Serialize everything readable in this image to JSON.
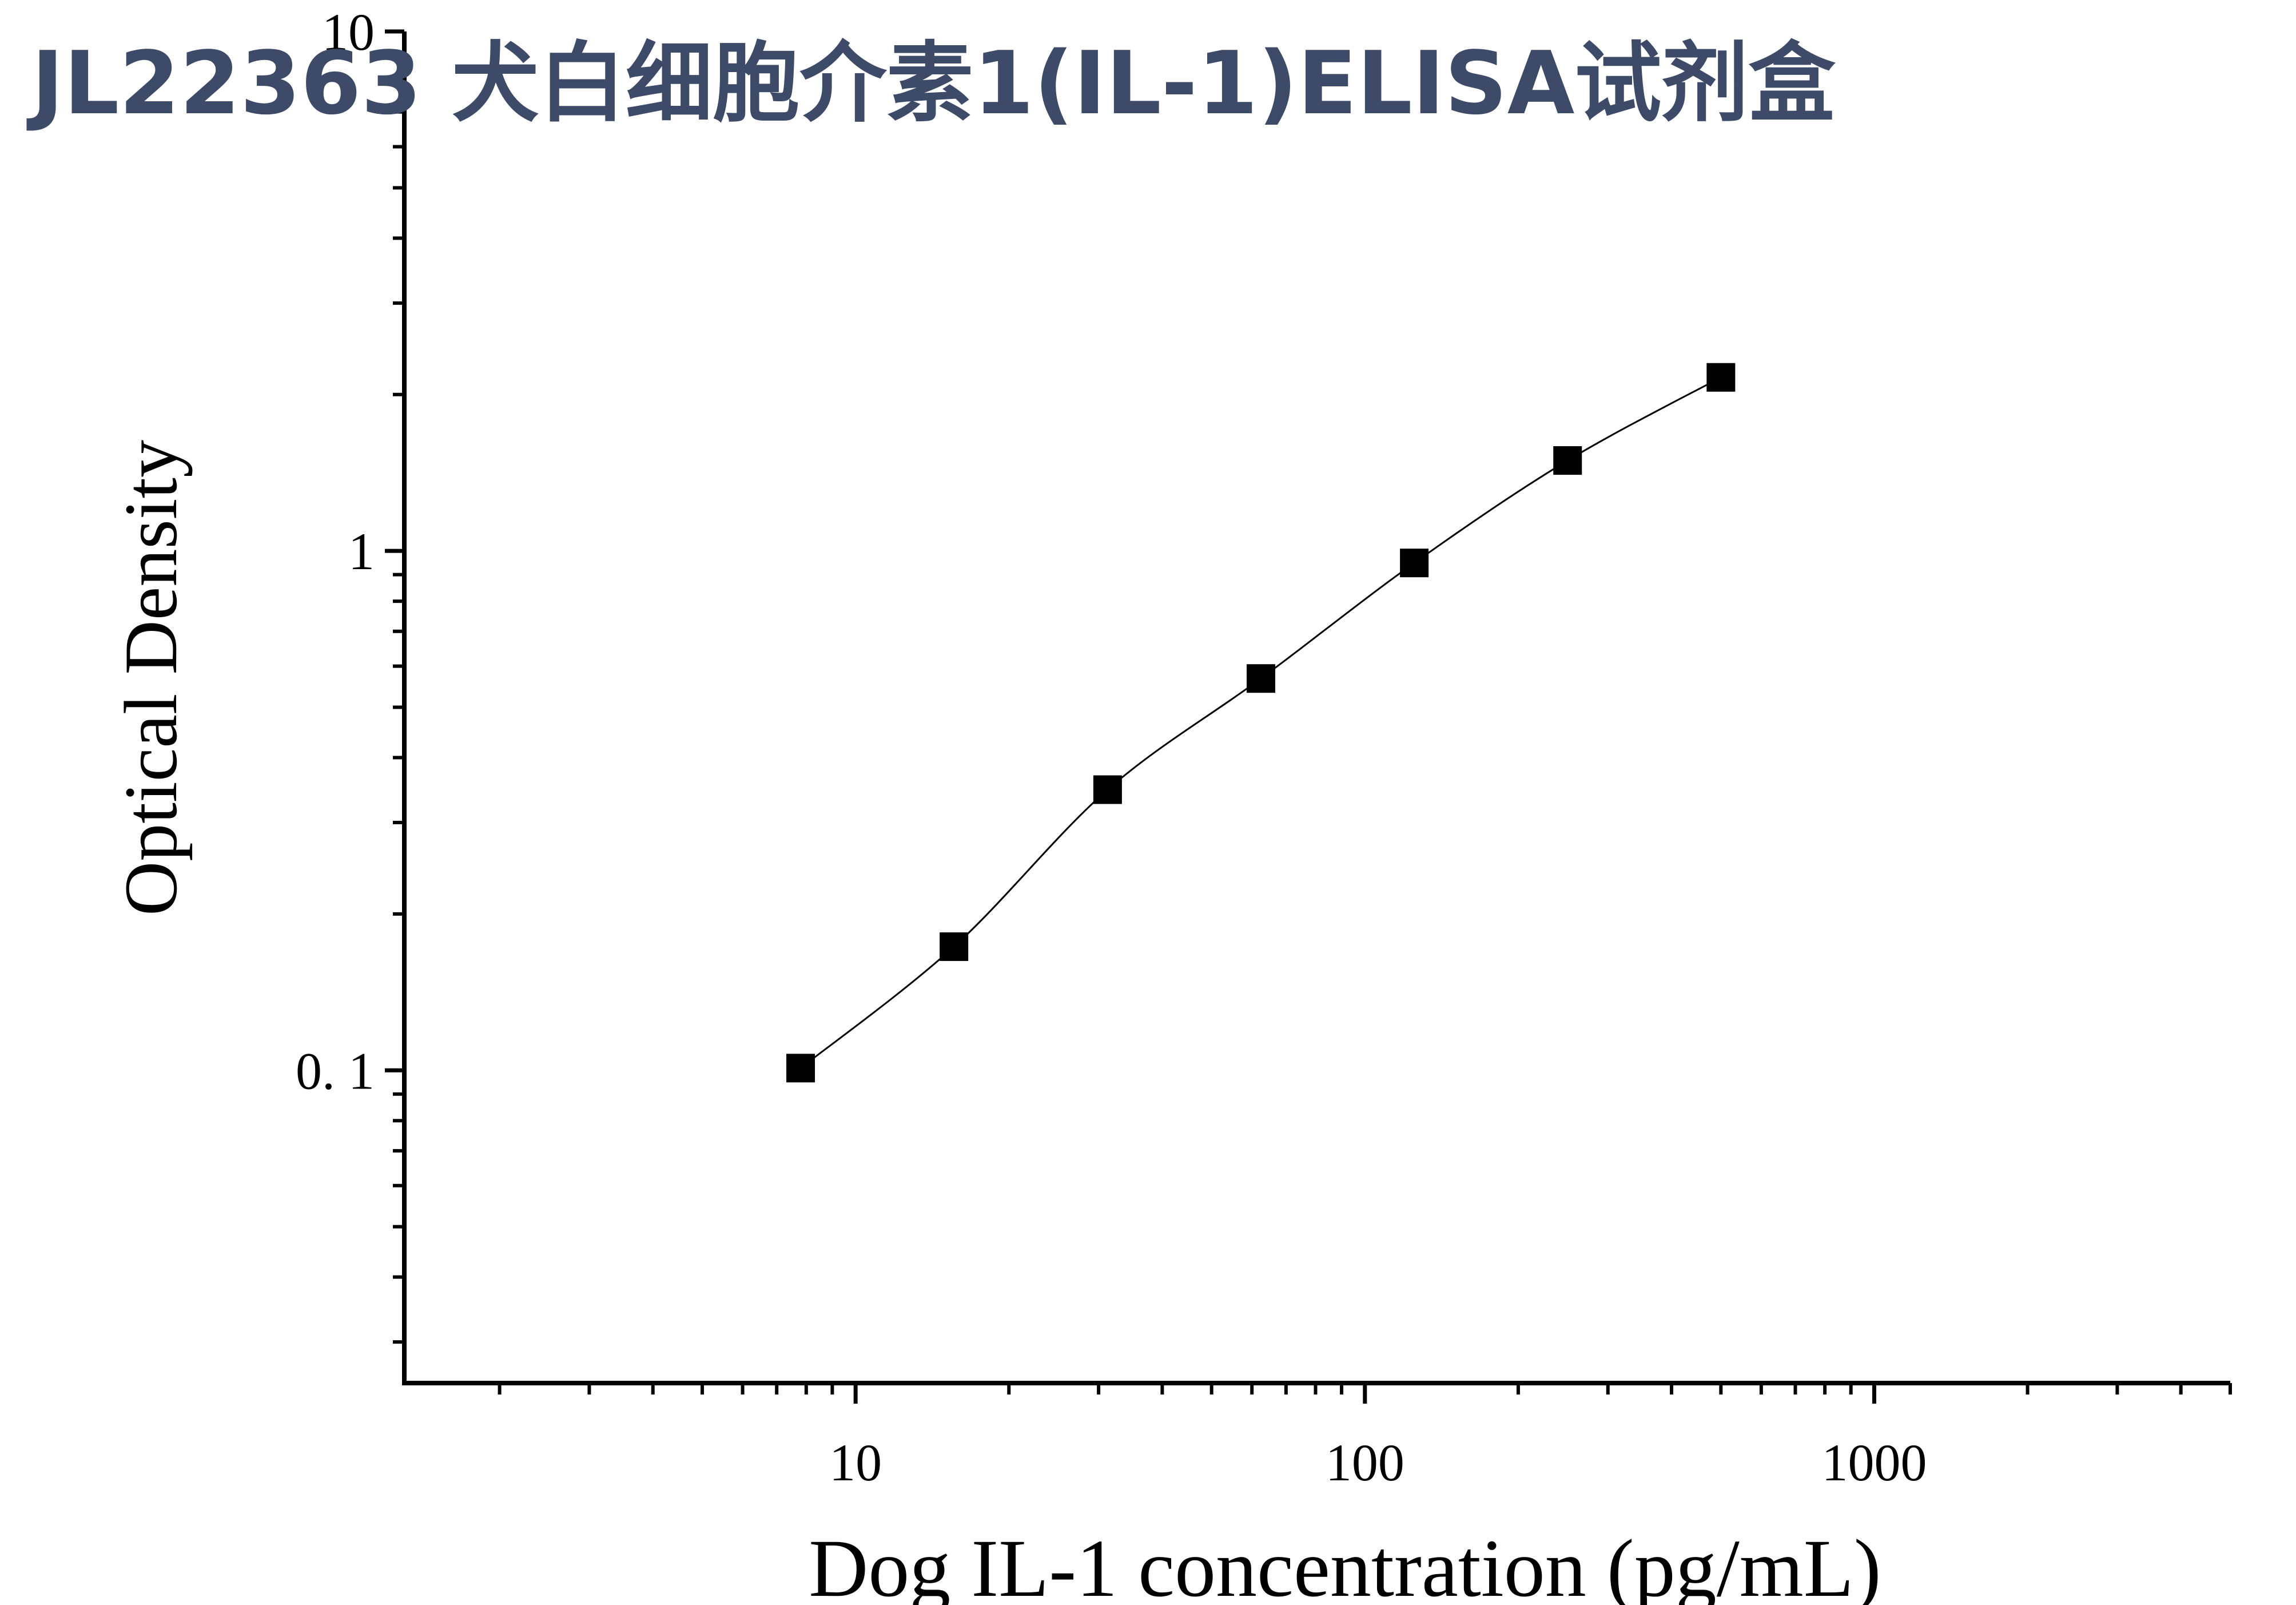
{
  "page_title": "JL22363 犬白细胞介素1(IL-1)ELISA试剂盒",
  "colors": {
    "title": "#3d4a68",
    "axis": "#000000",
    "marker": "#000000",
    "curve": "#000000"
  },
  "chart_data": {
    "type": "scatter",
    "title": "JL22363 犬白细胞介素1(IL-1)ELISA试剂盒",
    "xlabel": "Dog  IL-1 concentration (pg/mL)",
    "ylabel": "Optical Density",
    "x_scale": "log",
    "y_scale": "log",
    "xlim": [
      1.3,
      5000
    ],
    "ylim": [
      0.025,
      10
    ],
    "x_ticks": [
      {
        "value": 10,
        "label": "10"
      },
      {
        "value": 100,
        "label": "100"
      },
      {
        "value": 1000,
        "label": "1000"
      }
    ],
    "y_ticks": [
      {
        "value": 0.1,
        "label": "0. 1"
      },
      {
        "value": 1,
        "label": "1"
      },
      {
        "value": 10,
        "label": "10"
      }
    ],
    "grid": false,
    "legend": "none",
    "fit_curve": true,
    "series": [
      {
        "marker": "square",
        "x": [
          7.8,
          15.6,
          31.25,
          62.5,
          125,
          250,
          500
        ],
        "y": [
          0.101,
          0.173,
          0.347,
          0.568,
          0.948,
          1.493,
          2.158
        ]
      }
    ]
  }
}
